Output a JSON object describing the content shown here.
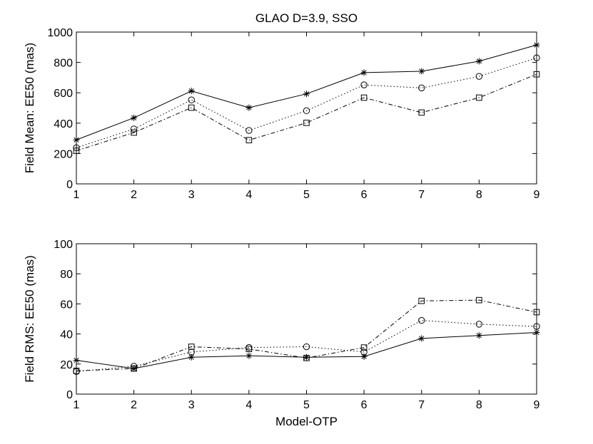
{
  "chart_data": [
    {
      "type": "line",
      "title": "GLAO D=3.9, SSO",
      "xlabel": "",
      "ylabel": "Field Mean: EE50 (mas)",
      "x": [
        1,
        2,
        3,
        4,
        5,
        6,
        7,
        8,
        9
      ],
      "xticks": [
        "1",
        "2",
        "3",
        "4",
        "5",
        "6",
        "7",
        "8",
        "9"
      ],
      "yticks": [
        "0",
        "200",
        "400",
        "600",
        "800",
        "1000"
      ],
      "xlim": [
        1,
        9
      ],
      "ylim": [
        0,
        1000
      ],
      "grid": false,
      "series": [
        {
          "name": "star",
          "marker": "asterisk",
          "linestyle": "solid",
          "values": [
            290,
            435,
            612,
            502,
            593,
            733,
            742,
            808,
            915
          ]
        },
        {
          "name": "circle",
          "marker": "circle",
          "linestyle": "dotted",
          "values": [
            238,
            362,
            553,
            352,
            482,
            652,
            632,
            708,
            830
          ]
        },
        {
          "name": "square",
          "marker": "square",
          "linestyle": "dashdot",
          "values": [
            218,
            338,
            502,
            288,
            402,
            568,
            470,
            568,
            722
          ]
        }
      ]
    },
    {
      "type": "line",
      "title": "",
      "xlabel": "Model-OTP",
      "ylabel": "Field RMS: EE50 (mas)",
      "x": [
        1,
        2,
        3,
        4,
        5,
        6,
        7,
        8,
        9
      ],
      "xticks": [
        "1",
        "2",
        "3",
        "4",
        "5",
        "6",
        "7",
        "8",
        "9"
      ],
      "yticks": [
        "0",
        "20",
        "40",
        "60",
        "80",
        "100"
      ],
      "xlim": [
        1,
        9
      ],
      "ylim": [
        0,
        100
      ],
      "grid": false,
      "series": [
        {
          "name": "star",
          "marker": "asterisk",
          "linestyle": "solid",
          "values": [
            22.5,
            17,
            24.5,
            25.5,
            24.5,
            25,
            37,
            39,
            41
          ]
        },
        {
          "name": "circle",
          "marker": "circle",
          "linestyle": "dotted",
          "values": [
            15,
            18.5,
            28,
            31,
            31.5,
            28,
            49,
            46.5,
            45
          ]
        },
        {
          "name": "square",
          "marker": "square",
          "linestyle": "dashdot",
          "values": [
            15.5,
            17,
            31.5,
            30,
            24,
            31,
            62,
            62.5,
            54.5
          ]
        }
      ]
    }
  ]
}
